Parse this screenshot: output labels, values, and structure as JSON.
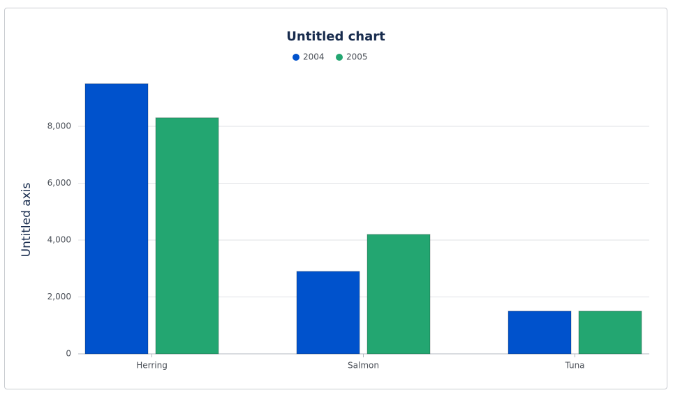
{
  "chart_data": {
    "type": "bar",
    "title": "Untitled chart",
    "y_label": "Untitled axis",
    "categories": [
      "Herring",
      "Salmon",
      "Tuna"
    ],
    "series": [
      {
        "name": "2004",
        "color": "#0052cc",
        "values": [
          9500,
          2900,
          1500
        ]
      },
      {
        "name": "2005",
        "color": "#23a671",
        "values": [
          8300,
          4200,
          1500
        ]
      }
    ],
    "ylim": [
      0,
      10000
    ],
    "yticks": [
      0,
      {
        "value": 2000,
        "label": "2,000"
      },
      {
        "value": 4000,
        "label": "4,000"
      },
      {
        "value": 6000,
        "label": "6,000"
      },
      {
        "value": 8000,
        "label": "8,000"
      }
    ],
    "grid": true,
    "legend": "top"
  }
}
